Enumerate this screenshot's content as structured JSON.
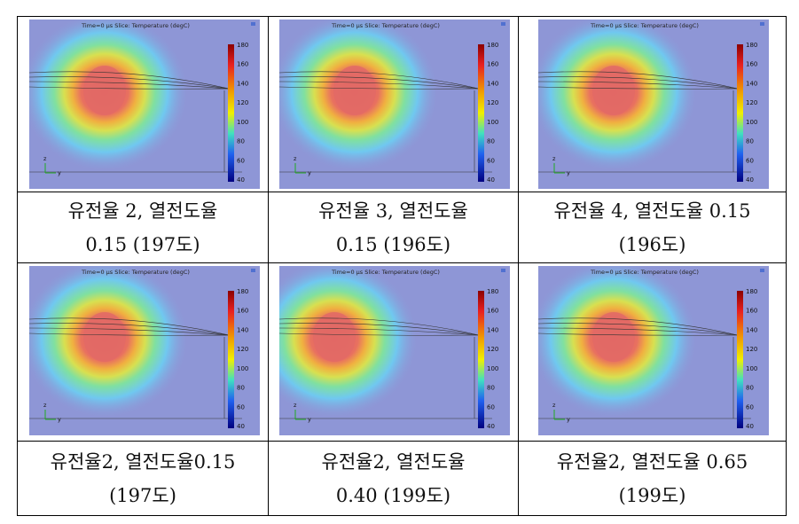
{
  "panels": [
    {
      "title": "Time=0 µs  Slice: Temperature (degC)",
      "colorbar_ticks": [
        180,
        160,
        140,
        120,
        100,
        80,
        60,
        40
      ],
      "axes": [
        "z",
        "y"
      ],
      "caption": [
        "유전율 2, 열전도율",
        "0.15 (197도)"
      ]
    },
    {
      "title": "Time=0 µs  Slice: Temperature (degC)",
      "colorbar_ticks": [
        180,
        160,
        140,
        120,
        100,
        80,
        60,
        40
      ],
      "axes": [
        "z",
        "y"
      ],
      "caption": [
        "유전율 3, 열전도율",
        "0.15 (196도)"
      ]
    },
    {
      "title": "Time=0 µs  Slice: Temperature (degC)",
      "colorbar_ticks": [
        180,
        160,
        140,
        120,
        100,
        80,
        60,
        40
      ],
      "axes": [
        "z",
        "y"
      ],
      "caption": [
        "유전율 4, 열전도율 0.15",
        "(196도)"
      ]
    },
    {
      "title": "Time=0 µs  Slice: Temperature (degC)",
      "colorbar_ticks": [
        180,
        160,
        140,
        120,
        100,
        80,
        60,
        40
      ],
      "axes": [
        "z",
        "y"
      ],
      "caption": [
        "유전율2, 열전도율0.15",
        "(197도)"
      ]
    },
    {
      "title": "Time=0 µs  Slice: Temperature (degC)",
      "colorbar_ticks": [
        180,
        160,
        140,
        120,
        100,
        80,
        60,
        40
      ],
      "axes": [
        "z",
        "y"
      ],
      "caption": [
        "유전율2, 열전도율",
        "0.40 (199도)"
      ]
    },
    {
      "title": "Time=0 µs  Slice: Temperature (degC)",
      "colorbar_ticks": [
        180,
        160,
        140,
        120,
        100,
        80,
        60,
        40
      ],
      "axes": [
        "z",
        "y"
      ],
      "caption": [
        "유전율2, 열전도율 0.65",
        "(199도)"
      ]
    }
  ]
}
